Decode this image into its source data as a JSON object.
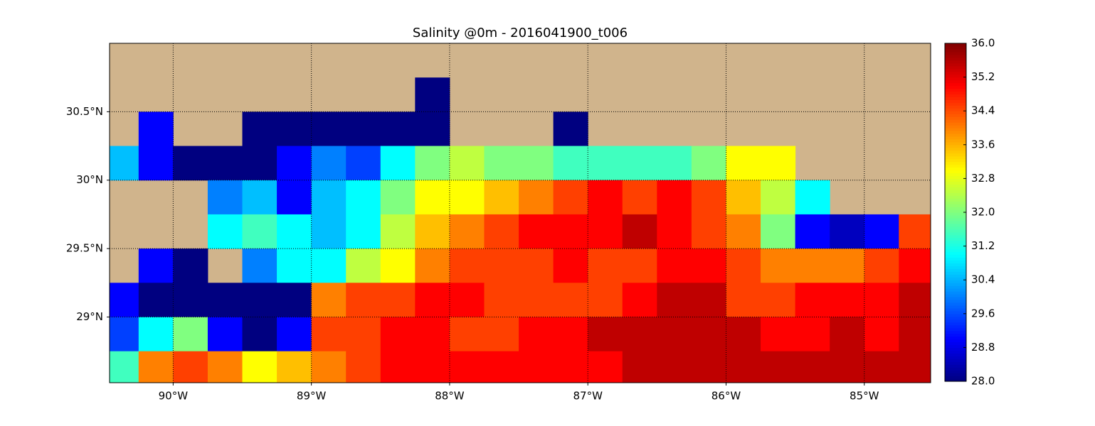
{
  "chart_data": {
    "type": "heatmap",
    "title": "Salinity @0m - 2016041900_t006",
    "land_color": "#d0b48c",
    "xlim": [
      -90.46,
      -84.52
    ],
    "ylim": [
      28.52,
      31.0
    ],
    "xticks": [
      {
        "value": -90,
        "label": "90°W"
      },
      {
        "value": -89,
        "label": "89°W"
      },
      {
        "value": -88,
        "label": "88°W"
      },
      {
        "value": -87,
        "label": "87°W"
      },
      {
        "value": -86,
        "label": "86°W"
      },
      {
        "value": -85,
        "label": "85°W"
      }
    ],
    "yticks": [
      {
        "value": 29,
        "label": "29°N"
      },
      {
        "value": 29.5,
        "label": "29.5°N"
      },
      {
        "value": 30,
        "label": "30°N"
      },
      {
        "value": 30.5,
        "label": "30.5°N"
      }
    ],
    "grid": true,
    "x": [
      -90.375,
      -90.125,
      -89.875,
      -89.625,
      -89.375,
      -89.125,
      -88.875,
      -88.625,
      -88.375,
      -88.125,
      -87.875,
      -87.625,
      -87.375,
      -87.125,
      -86.875,
      -86.625,
      -86.375,
      -86.125,
      -85.875,
      -85.625,
      -85.375,
      -85.125,
      -84.875,
      -84.625
    ],
    "y": [
      30.875,
      30.625,
      30.375,
      30.125,
      29.875,
      29.625,
      29.375,
      29.125,
      28.875,
      28.625
    ],
    "z": [
      [
        null,
        null,
        null,
        null,
        null,
        null,
        null,
        null,
        null,
        null,
        null,
        null,
        null,
        null,
        null,
        null,
        null,
        null,
        null,
        null,
        null,
        null,
        null,
        null
      ],
      [
        null,
        null,
        null,
        null,
        null,
        null,
        null,
        null,
        null,
        28,
        null,
        null,
        null,
        null,
        null,
        null,
        null,
        null,
        null,
        null,
        null,
        null,
        null,
        null
      ],
      [
        null,
        29,
        null,
        null,
        28,
        28,
        28,
        28,
        28,
        28,
        null,
        null,
        null,
        28,
        null,
        null,
        null,
        null,
        null,
        null,
        null,
        null,
        null,
        null
      ],
      [
        30.5,
        29,
        28,
        28,
        28,
        29,
        30,
        29.5,
        31,
        32,
        32.5,
        32,
        32,
        31.5,
        31.5,
        31.5,
        31.5,
        32,
        33,
        33,
        null,
        null,
        null,
        null
      ],
      [
        null,
        null,
        null,
        30,
        30.5,
        29,
        30.5,
        31,
        32,
        33,
        33,
        33.5,
        34,
        34.5,
        35,
        34.5,
        35,
        34.5,
        33.5,
        32.5,
        31,
        null,
        null,
        null
      ],
      [
        null,
        null,
        null,
        31,
        31.5,
        31,
        30.5,
        31,
        32.5,
        33.5,
        34,
        34.5,
        35,
        35,
        35,
        35.5,
        35,
        34.5,
        34,
        32,
        29,
        28.5,
        29,
        34.5
      ],
      [
        null,
        29,
        28,
        null,
        30,
        31,
        31,
        32.5,
        33,
        34,
        34.5,
        34.5,
        34.5,
        35,
        34.5,
        34.5,
        35,
        35,
        34.5,
        34,
        34,
        34,
        34.5,
        35
      ],
      [
        29,
        28,
        28,
        28,
        28,
        28,
        34,
        34.5,
        34.5,
        35,
        35,
        34.5,
        34.5,
        34.5,
        34.5,
        35,
        35.5,
        35.5,
        34.5,
        34.5,
        35,
        35,
        35,
        35.5
      ],
      [
        29.5,
        31,
        32,
        29,
        28,
        29,
        34.5,
        34.5,
        35,
        35,
        34.5,
        34.5,
        35,
        35,
        35.5,
        35.5,
        35.5,
        35.5,
        35.5,
        35,
        35,
        35.5,
        35,
        35.5
      ],
      [
        31.5,
        34,
        34.5,
        34,
        33,
        33.5,
        34,
        34.5,
        35,
        35,
        35,
        35,
        35,
        35,
        35,
        35.5,
        35.5,
        35.5,
        35.5,
        35.5,
        35.5,
        35.5,
        35.5,
        35.5
      ]
    ],
    "clim": [
      28.0,
      36.0
    ],
    "cticks": [
      {
        "value": 28,
        "label": "28.0"
      },
      {
        "value": 28.8,
        "label": "28.8"
      },
      {
        "value": 29.6,
        "label": "29.6"
      },
      {
        "value": 30.4,
        "label": "30.4"
      },
      {
        "value": 31.2,
        "label": "31.2"
      },
      {
        "value": 32,
        "label": "32.0"
      },
      {
        "value": 32.8,
        "label": "32.8"
      },
      {
        "value": 33.6,
        "label": "33.6"
      },
      {
        "value": 34.4,
        "label": "34.4"
      },
      {
        "value": 35.2,
        "label": "35.2"
      },
      {
        "value": 36,
        "label": "36.0"
      }
    ]
  }
}
